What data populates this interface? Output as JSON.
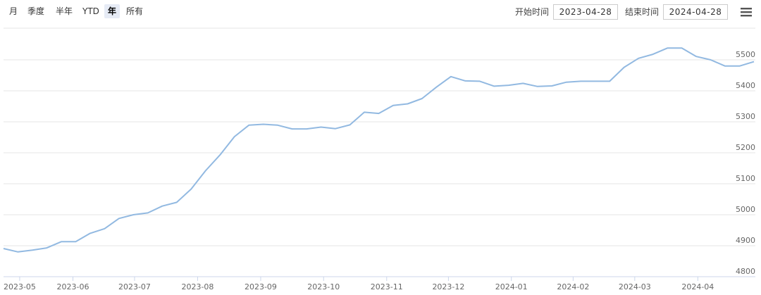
{
  "toolbar": {
    "ranges": [
      "月",
      "季度",
      "半年",
      "YTD",
      "年",
      "所有"
    ],
    "selected": 4,
    "start_label": "开始时间",
    "start_value": "2023-04-28",
    "end_label": "结束时间",
    "end_value": "2024-04-28"
  },
  "chart_data": {
    "type": "line",
    "color": "#92b9e1",
    "categories": [
      null,
      null,
      null,
      null,
      null,
      null,
      null,
      null,
      null,
      null,
      null,
      null,
      null,
      null,
      null,
      null,
      null,
      null,
      null,
      null,
      null,
      null,
      null,
      null,
      null,
      null,
      null,
      null,
      null,
      null,
      null,
      null,
      null,
      null,
      null,
      null,
      null,
      null,
      null,
      null,
      null,
      null,
      null,
      null,
      null,
      null,
      null,
      null,
      null,
      null,
      null,
      null,
      null
    ],
    "values": [
      4891,
      4880,
      4886,
      4893,
      4913,
      4913,
      4940,
      4955,
      4988,
      5000,
      5006,
      5028,
      5040,
      5083,
      5142,
      5193,
      5252,
      5289,
      5292,
      5289,
      5277,
      5277,
      5283,
      5278,
      5290,
      5331,
      5327,
      5353,
      5358,
      5375,
      5412,
      5446,
      5432,
      5431,
      5415,
      5418,
      5424,
      5414,
      5416,
      5428,
      5431,
      5431,
      5431,
      5476,
      5505,
      5518,
      5538,
      5538,
      5511,
      5500,
      5480,
      5480,
      5494
    ],
    "xticks": [
      {
        "value": 1.12,
        "label": "2023-05"
      },
      {
        "value": 4.81,
        "label": "2023-06"
      },
      {
        "value": 9.08,
        "label": "2023-07"
      },
      {
        "value": 13.45,
        "label": "2023-08"
      },
      {
        "value": 17.82,
        "label": "2023-09"
      },
      {
        "value": 22.18,
        "label": "2023-10"
      },
      {
        "value": 26.55,
        "label": "2023-11"
      },
      {
        "value": 30.83,
        "label": "2023-12"
      },
      {
        "value": 35.19,
        "label": "2024-01"
      },
      {
        "value": 39.47,
        "label": "2024-02"
      },
      {
        "value": 43.74,
        "label": "2024-03"
      },
      {
        "value": 48.11,
        "label": "2024-04"
      }
    ],
    "ylim": [
      4800,
      5600
    ],
    "yticks": [
      4800,
      4900,
      5000,
      5100,
      5200,
      5300,
      5400,
      5500
    ],
    "grid": true
  }
}
